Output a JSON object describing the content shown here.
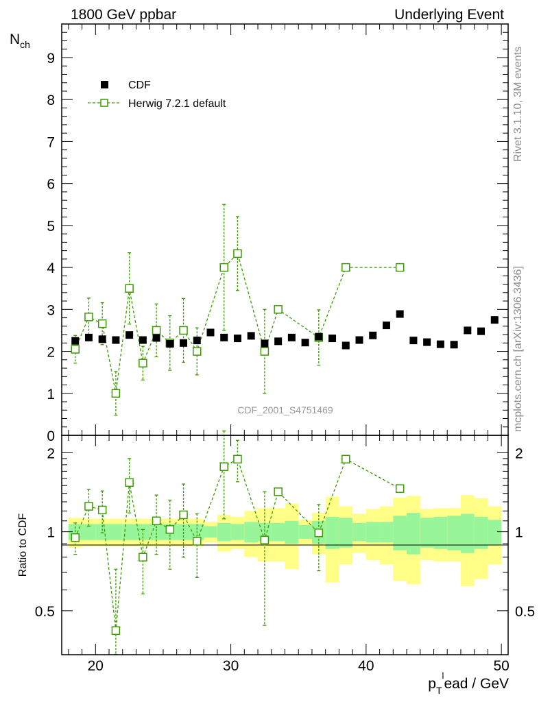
{
  "header": {
    "left": "1800 GeV ppbar",
    "right": "Underlying Event"
  },
  "side_labels": {
    "rivet": "Rivet 3.1.10,  3M events",
    "mcplots": "mcplots.cern.ch [arXiv:1306.3436]"
  },
  "watermark": "CDF_2001_S4751469",
  "legend": {
    "data_label": "CDF",
    "mc_label": "Herwig 7.2.1 default"
  },
  "colors": {
    "data": "#000000",
    "mc": "#3a9a00",
    "band_inner": "#99f599",
    "band_outer": "#ffff88"
  },
  "chart_data": [
    {
      "type": "scatter",
      "panel": "main",
      "ylabel_main": "N",
      "ylabel_sub": "ch",
      "ylim": [
        0,
        9.8
      ],
      "yticks": [
        0,
        1,
        2,
        3,
        4,
        5,
        6,
        7,
        8,
        9
      ],
      "xlim": [
        17.5,
        50.5
      ],
      "xticks": [
        20,
        30,
        40,
        50
      ],
      "series": [
        {
          "name": "CDF",
          "x": [
            18.5,
            19.5,
            20.5,
            21.5,
            22.5,
            23.5,
            24.5,
            25.5,
            26.5,
            27.5,
            28.5,
            29.5,
            30.5,
            31.5,
            32.5,
            33.5,
            34.5,
            35.5,
            36.5,
            37.5,
            38.5,
            39.5,
            40.5,
            41.5,
            42.5,
            43.5,
            44.5,
            45.5,
            46.5,
            47.5,
            48.5,
            49.5
          ],
          "y": [
            2.25,
            2.33,
            2.29,
            2.27,
            2.39,
            2.27,
            2.32,
            2.18,
            2.2,
            2.26,
            2.45,
            2.33,
            2.31,
            2.37,
            2.19,
            2.24,
            2.33,
            2.21,
            2.35,
            2.31,
            2.14,
            2.27,
            2.38,
            2.62,
            2.89,
            2.26,
            2.22,
            2.17,
            2.16,
            2.5,
            2.48,
            2.75
          ]
        },
        {
          "name": "Herwig 7.2.1 default",
          "x": [
            18.5,
            19.5,
            20.5,
            21.5,
            22.5,
            23.5,
            24.5,
            25.5,
            26.5,
            27.5,
            29.5,
            30.5,
            32.5,
            33.5,
            36.5,
            38.5,
            42.5
          ],
          "y": [
            2.05,
            2.82,
            2.66,
            1.0,
            3.5,
            1.72,
            2.5,
            2.2,
            2.5,
            2.0,
            4.0,
            4.33,
            2.0,
            3.0,
            2.33,
            4.0,
            4.0
          ],
          "err": [
            0.33,
            0.45,
            0.5,
            0.52,
            0.85,
            0.4,
            0.63,
            0.65,
            0.76,
            0.56,
            1.5,
            0.88,
            1.0,
            0.0,
            0.66,
            0.0,
            0.0
          ]
        }
      ]
    },
    {
      "type": "scatter",
      "panel": "ratio",
      "ylabel": "Ratio to CDF",
      "ylim": [
        0.34,
        2.33
      ],
      "yticks": [
        0.5,
        1,
        2
      ],
      "xlabel": "p_T^lead / GeV",
      "xlabel_main": "p",
      "xlabel_sub": "T",
      "xlabel_sup": "l",
      "xlabel_rest": "ead / GeV",
      "bands": {
        "x_edges": [
          18,
          19,
          20,
          21,
          22,
          23,
          24,
          25,
          26,
          27,
          28,
          29,
          30,
          31,
          32,
          33,
          34,
          35,
          36,
          37,
          38,
          39,
          40,
          41,
          42,
          43,
          44,
          45,
          46,
          47,
          48,
          49,
          50
        ],
        "inner": [
          0.07,
          0.07,
          0.07,
          0.07,
          0.07,
          0.07,
          0.07,
          0.07,
          0.07,
          0.07,
          0.05,
          0.08,
          0.07,
          0.09,
          0.08,
          0.08,
          0.1,
          0.06,
          0.1,
          0.14,
          0.13,
          0.08,
          0.09,
          0.09,
          0.15,
          0.18,
          0.13,
          0.14,
          0.15,
          0.17,
          0.14,
          0.11
        ],
        "outer": [
          0.13,
          0.12,
          0.12,
          0.12,
          0.12,
          0.12,
          0.12,
          0.12,
          0.12,
          0.12,
          0.09,
          0.16,
          0.14,
          0.2,
          0.23,
          0.23,
          0.28,
          0.11,
          0.18,
          0.36,
          0.25,
          0.17,
          0.22,
          0.25,
          0.35,
          0.37,
          0.22,
          0.23,
          0.23,
          0.38,
          0.34,
          0.25
        ]
      },
      "series": [
        {
          "name": "Herwig 7.2.1 default",
          "x": [
            18.5,
            19.5,
            20.5,
            21.5,
            22.5,
            23.5,
            24.5,
            25.5,
            26.5,
            27.5,
            29.5,
            30.5,
            32.5,
            33.5,
            36.5,
            38.5,
            42.5
          ],
          "y": [
            0.95,
            1.25,
            1.21,
            0.42,
            1.54,
            0.8,
            1.1,
            1.02,
            1.16,
            0.92,
            1.77,
            1.89,
            0.93,
            1.42,
            0.99,
            1.89,
            1.46
          ],
          "err": [
            0.13,
            0.2,
            0.22,
            0.3,
            0.36,
            0.22,
            0.28,
            0.3,
            0.36,
            0.25,
            0.65,
            0.34,
            0.49,
            0.0,
            0.28,
            0.0,
            0.0
          ]
        }
      ]
    }
  ]
}
